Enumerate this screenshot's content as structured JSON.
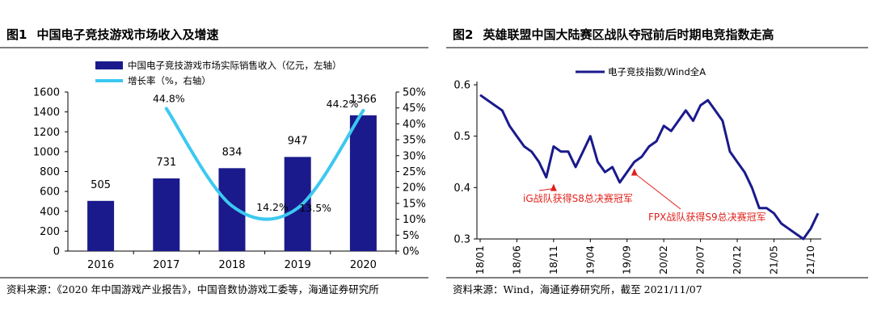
{
  "fig1": {
    "num": "图1",
    "title": "中国电子竞技游戏市场收入及增速",
    "source": "资料来源：《2020 年中国游戏产业报告》，中国音数协游戏工委等，海通证券研究所",
    "chart_data": {
      "type": "bar",
      "categories": [
        "2016",
        "2017",
        "2018",
        "2019",
        "2020"
      ],
      "series": [
        {
          "name": "中国电子竞技游戏市场实际销售收入（亿元，左轴）",
          "type": "bar",
          "axis": "left",
          "values": [
            505,
            731,
            834,
            947,
            1366
          ],
          "labels": [
            "505",
            "731",
            "834",
            "947",
            "1366"
          ],
          "color": "#1a1a8c"
        },
        {
          "name": "增长率（%，右轴）",
          "type": "line",
          "axis": "right",
          "values": [
            null,
            44.8,
            14.2,
            13.5,
            44.2
          ],
          "labels": [
            "",
            "44.8%",
            "14.2%",
            "13.5%",
            "44.2%"
          ],
          "color": "#3cc8f0"
        }
      ],
      "y_left": {
        "min": 0,
        "max": 1600,
        "step": 200,
        "ticks": [
          "0",
          "200",
          "400",
          "600",
          "800",
          "1000",
          "1200",
          "1400",
          "1600"
        ]
      },
      "y_right": {
        "min": 0,
        "max": 50,
        "step": 5,
        "ticks": [
          "0%",
          "5%",
          "10%",
          "15%",
          "20%",
          "25%",
          "30%",
          "35%",
          "40%",
          "45%",
          "50%"
        ]
      },
      "grid": false,
      "legend": "top-left"
    }
  },
  "fig2": {
    "num": "图2",
    "title": "英雄联盟中国大陆赛区战队夺冠前后时期电竞指数走高",
    "source": "资料来源：Wind，海通证券研究所，截至 2021/11/07",
    "chart_data": {
      "type": "line",
      "series": [
        {
          "name": "电子竞技指数/Wind全A",
          "color": "#1a1a8c",
          "x": [
            "2018-01",
            "2018-02",
            "2018-03",
            "2018-04",
            "2018-05",
            "2018-06",
            "2018-07",
            "2018-08",
            "2018-09",
            "2018-10",
            "2018-11",
            "2018-12",
            "2019-01",
            "2019-02",
            "2019-03",
            "2019-04",
            "2019-05",
            "2019-06",
            "2019-07",
            "2019-08",
            "2019-09",
            "2019-10",
            "2019-11",
            "2019-12",
            "2020-01",
            "2020-02",
            "2020-03",
            "2020-04",
            "2020-05",
            "2020-06",
            "2020-07",
            "2020-08",
            "2020-09",
            "2020-10",
            "2020-11",
            "2020-12",
            "2021-01",
            "2021-02",
            "2021-03",
            "2021-04",
            "2021-05",
            "2021-06",
            "2021-07",
            "2021-08",
            "2021-09",
            "2021-10",
            "2021-11"
          ],
          "values": [
            0.58,
            0.57,
            0.56,
            0.55,
            0.52,
            0.5,
            0.48,
            0.47,
            0.45,
            0.42,
            0.48,
            0.47,
            0.47,
            0.44,
            0.47,
            0.5,
            0.45,
            0.43,
            0.44,
            0.41,
            0.43,
            0.45,
            0.46,
            0.48,
            0.49,
            0.52,
            0.51,
            0.53,
            0.55,
            0.53,
            0.56,
            0.57,
            0.55,
            0.53,
            0.47,
            0.45,
            0.43,
            0.4,
            0.36,
            0.36,
            0.35,
            0.33,
            0.32,
            0.31,
            0.3,
            0.32,
            0.35
          ]
        }
      ],
      "x_ticks": [
        "18/01",
        "18/06",
        "18/11",
        "19/04",
        "19/09",
        "20/02",
        "20/07",
        "20/12",
        "21/05",
        "21/10"
      ],
      "y_axis": {
        "min": 0.3,
        "max": 0.6,
        "step": 0.1,
        "ticks": [
          "0.3",
          "0.4",
          "0.5",
          "0.6"
        ]
      },
      "annotations": [
        {
          "text": "iG战队获得S8总决赛冠军",
          "x": "2018-11",
          "y": 0.42,
          "color": "#e0201b"
        },
        {
          "text": "FPX战队获得S9总决赛冠军",
          "x": "2019-10",
          "y": 0.45,
          "color": "#e0201b"
        }
      ],
      "grid": false,
      "legend": "top-center"
    }
  }
}
